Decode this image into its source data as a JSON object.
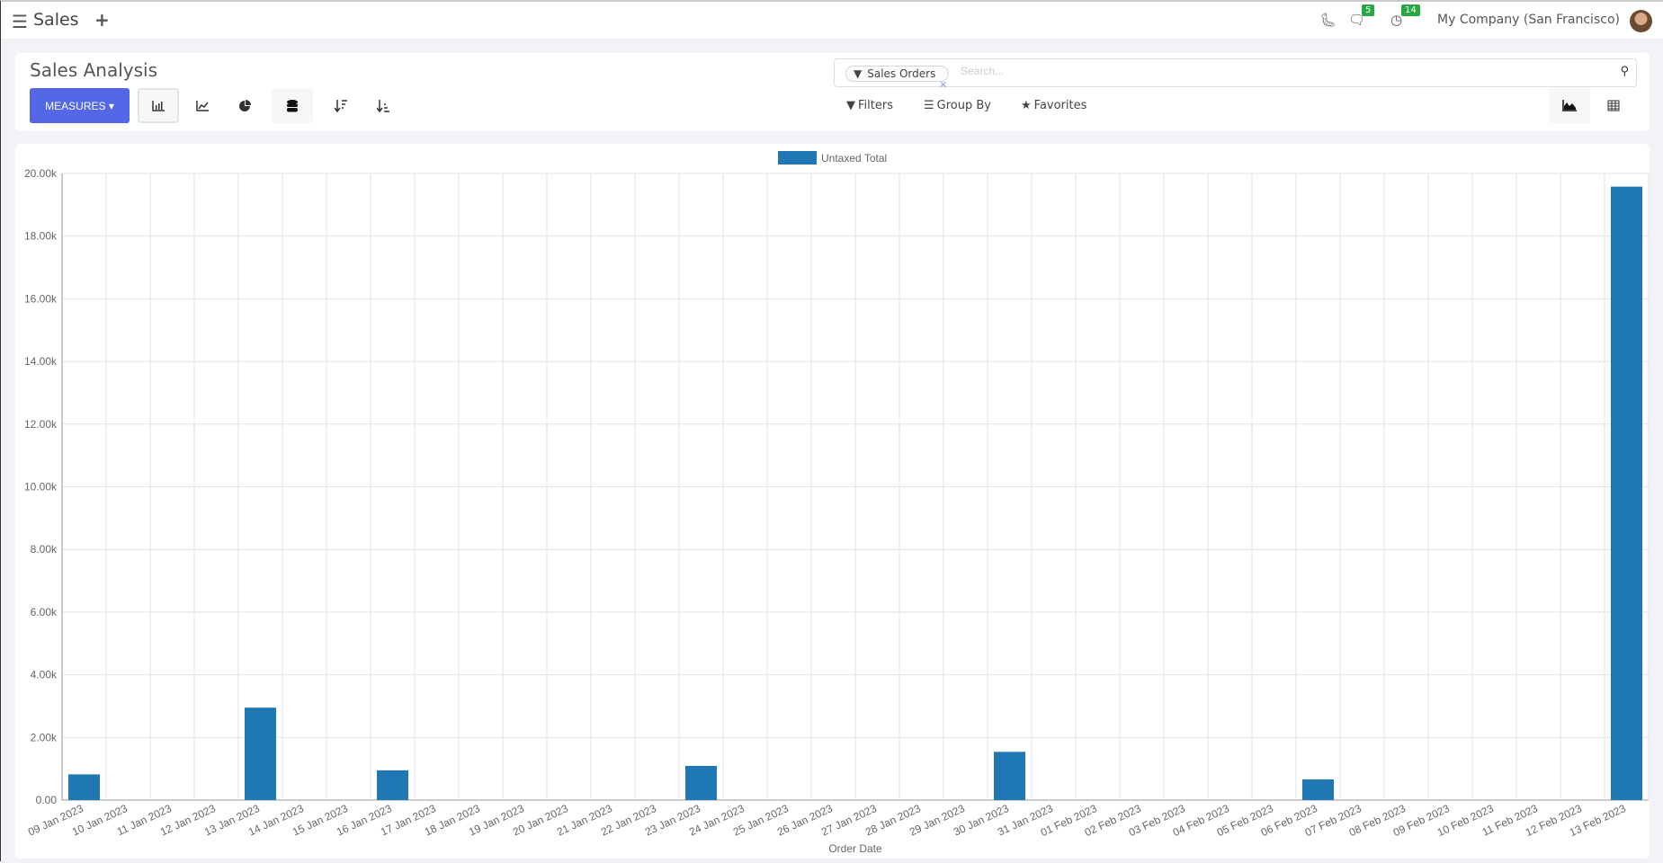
{
  "nav": {
    "app_title": "Sales",
    "messages_count": "5",
    "activities_count": "14",
    "company": "My Company (San Francisco)"
  },
  "control": {
    "title": "Sales Analysis",
    "measures_label": "MEASURES",
    "search": {
      "facet": "Sales Orders",
      "placeholder": "Search..."
    },
    "filters_label": "Filters",
    "groupby_label": "Group By",
    "favorites_label": "Favorites"
  },
  "colors": {
    "accent": "#5468e7",
    "bar": "#1f77b4",
    "badge": "#28a745"
  },
  "chart_data": {
    "type": "bar",
    "xlabel": "Order Date",
    "ylabel": "",
    "ylim": [
      0,
      20000
    ],
    "yticks": [
      "0.00",
      "2.00k",
      "4.00k",
      "6.00k",
      "8.00k",
      "10.00k",
      "12.00k",
      "14.00k",
      "16.00k",
      "18.00k",
      "20.00k"
    ],
    "grid": true,
    "legend": "top",
    "categories": [
      "09 Jan 2023",
      "10 Jan 2023",
      "11 Jan 2023",
      "12 Jan 2023",
      "13 Jan 2023",
      "14 Jan 2023",
      "15 Jan 2023",
      "16 Jan 2023",
      "17 Jan 2023",
      "18 Jan 2023",
      "19 Jan 2023",
      "20 Jan 2023",
      "21 Jan 2023",
      "22 Jan 2023",
      "23 Jan 2023",
      "24 Jan 2023",
      "25 Jan 2023",
      "26 Jan 2023",
      "27 Jan 2023",
      "28 Jan 2023",
      "29 Jan 2023",
      "30 Jan 2023",
      "31 Jan 2023",
      "01 Feb 2023",
      "02 Feb 2023",
      "03 Feb 2023",
      "04 Feb 2023",
      "05 Feb 2023",
      "06 Feb 2023",
      "07 Feb 2023",
      "08 Feb 2023",
      "09 Feb 2023",
      "10 Feb 2023",
      "11 Feb 2023",
      "12 Feb 2023",
      "13 Feb 2023"
    ],
    "series": [
      {
        "name": "Untaxed Total",
        "values": [
          820,
          0,
          0,
          0,
          2950,
          0,
          0,
          950,
          0,
          0,
          0,
          0,
          0,
          0,
          1090,
          0,
          0,
          0,
          0,
          0,
          0,
          1540,
          0,
          0,
          0,
          0,
          0,
          0,
          660,
          0,
          0,
          0,
          0,
          0,
          0,
          19580
        ]
      }
    ]
  }
}
